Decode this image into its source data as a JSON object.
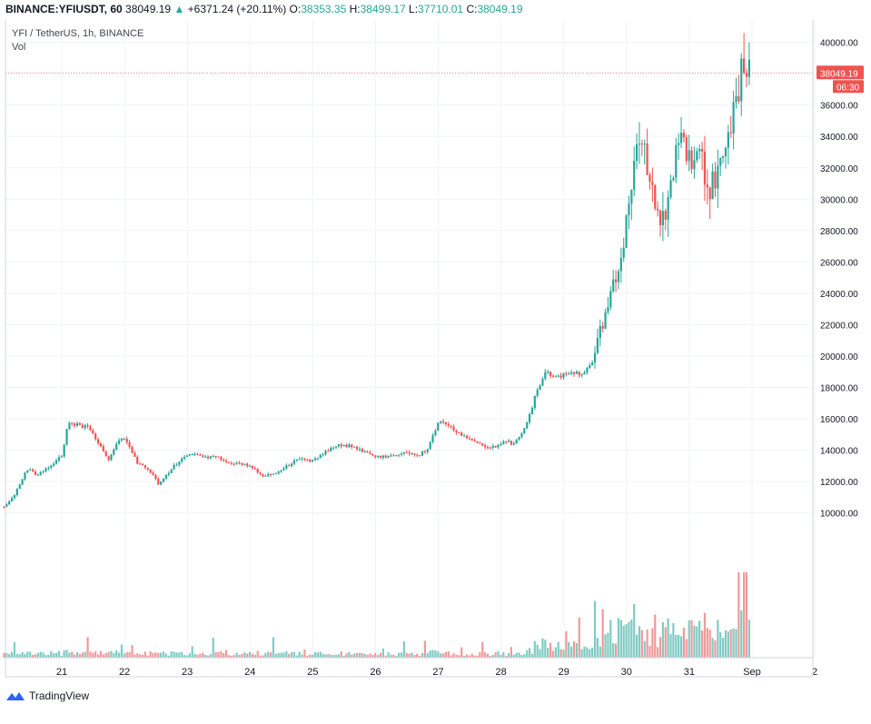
{
  "header": {
    "symbol": "BINANCE:YFIUSDT, 60",
    "last": "38049.19",
    "change_arrow": "▲",
    "change": "+6371.24 (+20.11%)",
    "o_label": "O:",
    "o_value": "38353.35",
    "h_label": "H:",
    "h_value": "38499.17",
    "l_label": "L:",
    "l_value": "37710.01",
    "c_label": "C:",
    "c_value": "38049.19"
  },
  "legend": {
    "pair": "YFI / TetherUS, 1h, BINANCE",
    "vol": "Vol"
  },
  "price_badge": {
    "value": "38049.19",
    "countdown": "06:30",
    "color": "#ef5350"
  },
  "branding": {
    "name": "TradingView",
    "icon": "tradingview-logo-icon"
  },
  "colors": {
    "up": "#26a69a",
    "down": "#ef5350",
    "vol_up": "#80cbc4",
    "vol_down": "#ef9a9a",
    "grid": "#f0f3fa"
  },
  "chart_data": {
    "type": "candlestick",
    "interval": "1h",
    "ylim": [
      8500,
      40500
    ],
    "y_ticks": [
      10000,
      12000,
      14000,
      16000,
      18000,
      20000,
      22000,
      24000,
      26000,
      28000,
      30000,
      32000,
      34000,
      36000,
      38000,
      40000
    ],
    "y_tick_labels": [
      "10000.00",
      "12000.00",
      "14000.00",
      "16000.00",
      "18000.00",
      "20000.00",
      "22000.00",
      "24000.00",
      "26000.00",
      "28000.00",
      "30000.00",
      "32000.00",
      "34000.00",
      "36000.00",
      "38000.00",
      "40000.00"
    ],
    "x_ticks": [
      "21",
      "22",
      "23",
      "24",
      "25",
      "26",
      "27",
      "28",
      "29",
      "30",
      "31",
      "Sep",
      "2"
    ],
    "x_tick_days": [
      1,
      2,
      3,
      4,
      5,
      6,
      7,
      8,
      9,
      10,
      11,
      12,
      13
    ],
    "x_start_day": 0.08,
    "x_end_day": 13.0,
    "last_day": 11.99,
    "series_name": "YFI / TetherUS",
    "keypoints": [
      [
        0.08,
        10400
      ],
      [
        0.25,
        11200
      ],
      [
        0.45,
        12800
      ],
      [
        0.6,
        12400
      ],
      [
        0.8,
        13000
      ],
      [
        1.0,
        13600
      ],
      [
        1.1,
        15800
      ],
      [
        1.25,
        15600
      ],
      [
        1.45,
        15400
      ],
      [
        1.6,
        14300
      ],
      [
        1.75,
        13300
      ],
      [
        1.9,
        14600
      ],
      [
        2.0,
        14800
      ],
      [
        2.2,
        13200
      ],
      [
        2.4,
        12700
      ],
      [
        2.55,
        11800
      ],
      [
        2.75,
        12800
      ],
      [
        2.95,
        13600
      ],
      [
        3.1,
        13800
      ],
      [
        3.3,
        13500
      ],
      [
        3.45,
        13700
      ],
      [
        3.65,
        13200
      ],
      [
        3.85,
        13100
      ],
      [
        4.0,
        13000
      ],
      [
        4.2,
        12400
      ],
      [
        4.4,
        12500
      ],
      [
        4.6,
        13000
      ],
      [
        4.8,
        13500
      ],
      [
        5.0,
        13300
      ],
      [
        5.2,
        13900
      ],
      [
        5.4,
        14300
      ],
      [
        5.55,
        14300
      ],
      [
        5.75,
        14000
      ],
      [
        5.95,
        13600
      ],
      [
        6.15,
        13600
      ],
      [
        6.35,
        13800
      ],
      [
        6.55,
        13800
      ],
      [
        6.7,
        13700
      ],
      [
        6.85,
        14200
      ],
      [
        7.0,
        15800
      ],
      [
        7.15,
        15600
      ],
      [
        7.35,
        15000
      ],
      [
        7.55,
        14700
      ],
      [
        7.7,
        14300
      ],
      [
        7.9,
        14200
      ],
      [
        8.05,
        14600
      ],
      [
        8.2,
        14400
      ],
      [
        8.4,
        15500
      ],
      [
        8.55,
        17500
      ],
      [
        8.7,
        19000
      ],
      [
        8.85,
        18600
      ],
      [
        9.0,
        18800
      ],
      [
        9.15,
        19000
      ],
      [
        9.3,
        18800
      ],
      [
        9.45,
        19600
      ],
      [
        9.6,
        21800
      ],
      [
        9.75,
        24000
      ],
      [
        9.9,
        25800
      ],
      [
        10.05,
        30000
      ],
      [
        10.15,
        34000
      ],
      [
        10.3,
        33000
      ],
      [
        10.45,
        30000
      ],
      [
        10.55,
        28000
      ],
      [
        10.7,
        30500
      ],
      [
        10.85,
        34200
      ],
      [
        11.0,
        32500
      ],
      [
        11.15,
        33600
      ],
      [
        11.3,
        30200
      ],
      [
        11.45,
        32000
      ],
      [
        11.6,
        33200
      ],
      [
        11.75,
        36200
      ],
      [
        11.85,
        38700
      ],
      [
        11.99,
        38049
      ]
    ],
    "volume_range": [
      0,
      17000
    ]
  }
}
